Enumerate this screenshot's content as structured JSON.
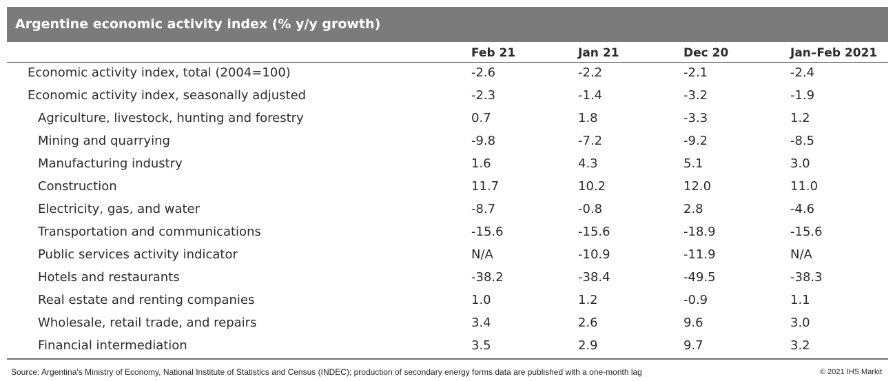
{
  "title": "Argentine economic activity index (% y/y growth)",
  "chart_data": {
    "type": "table",
    "title": "Argentine economic activity index (% y/y growth)",
    "columns": [
      "Feb 21",
      "Jan 21",
      "Dec 20",
      "Jan–Feb 2021"
    ],
    "rows": [
      {
        "label": "Economic activity index, total (2004=100)",
        "indent": false,
        "values": [
          "-2.6",
          "-2.2",
          "-2.1",
          "-2.4"
        ]
      },
      {
        "label": "Economic activity index, seasonally adjusted",
        "indent": false,
        "values": [
          "-2.3",
          "-1.4",
          "-3.2",
          "-1.9"
        ]
      },
      {
        "label": "Agriculture, livestock, hunting and forestry",
        "indent": true,
        "values": [
          "0.7",
          "1.8",
          "-3.3",
          "1.2"
        ]
      },
      {
        "label": "Mining and quarrying",
        "indent": true,
        "values": [
          "-9.8",
          "-7.2",
          "-9.2",
          "-8.5"
        ]
      },
      {
        "label": "Manufacturing industry",
        "indent": true,
        "values": [
          "1.6",
          "4.3",
          "5.1",
          "3.0"
        ]
      },
      {
        "label": "Construction",
        "indent": true,
        "values": [
          "11.7",
          "10.2",
          "12.0",
          "11.0"
        ]
      },
      {
        "label": "Electricity, gas, and water",
        "indent": true,
        "values": [
          "-8.7",
          "-0.8",
          "2.8",
          "-4.6"
        ]
      },
      {
        "label": "Transportation and communications",
        "indent": true,
        "values": [
          "-15.6",
          "-15.6",
          "-18.9",
          "-15.6"
        ]
      },
      {
        "label": "Public services activity indicator",
        "indent": true,
        "values": [
          "N/A",
          "-10.9",
          "-11.9",
          "N/A"
        ]
      },
      {
        "label": "Hotels and restaurants",
        "indent": true,
        "values": [
          "-38.2",
          "-38.4",
          "-49.5",
          "-38.3"
        ]
      },
      {
        "label": "Real estate and renting companies",
        "indent": true,
        "values": [
          "1.0",
          "1.2",
          "-0.9",
          "1.1"
        ]
      },
      {
        "label": "Wholesale, retail trade, and repairs",
        "indent": true,
        "values": [
          "3.4",
          "2.6",
          "9.6",
          "3.0"
        ]
      },
      {
        "label": "Financial intermediation",
        "indent": true,
        "values": [
          "3.5",
          "2.9",
          "9.7",
          "3.2"
        ]
      }
    ]
  },
  "footer": {
    "source": "Source: Argentina's Ministry of Economy, National Institute of Statistics and Census (INDEC); production of secondary energy forms data are published with a one-month lag",
    "copyright": "© 2021 IHS Markit"
  },
  "colors": {
    "title_bar": "#7b7b7b",
    "title_text": "#ffffff",
    "body_text": "#2b2b2b",
    "rules": "#6e6e6e"
  }
}
